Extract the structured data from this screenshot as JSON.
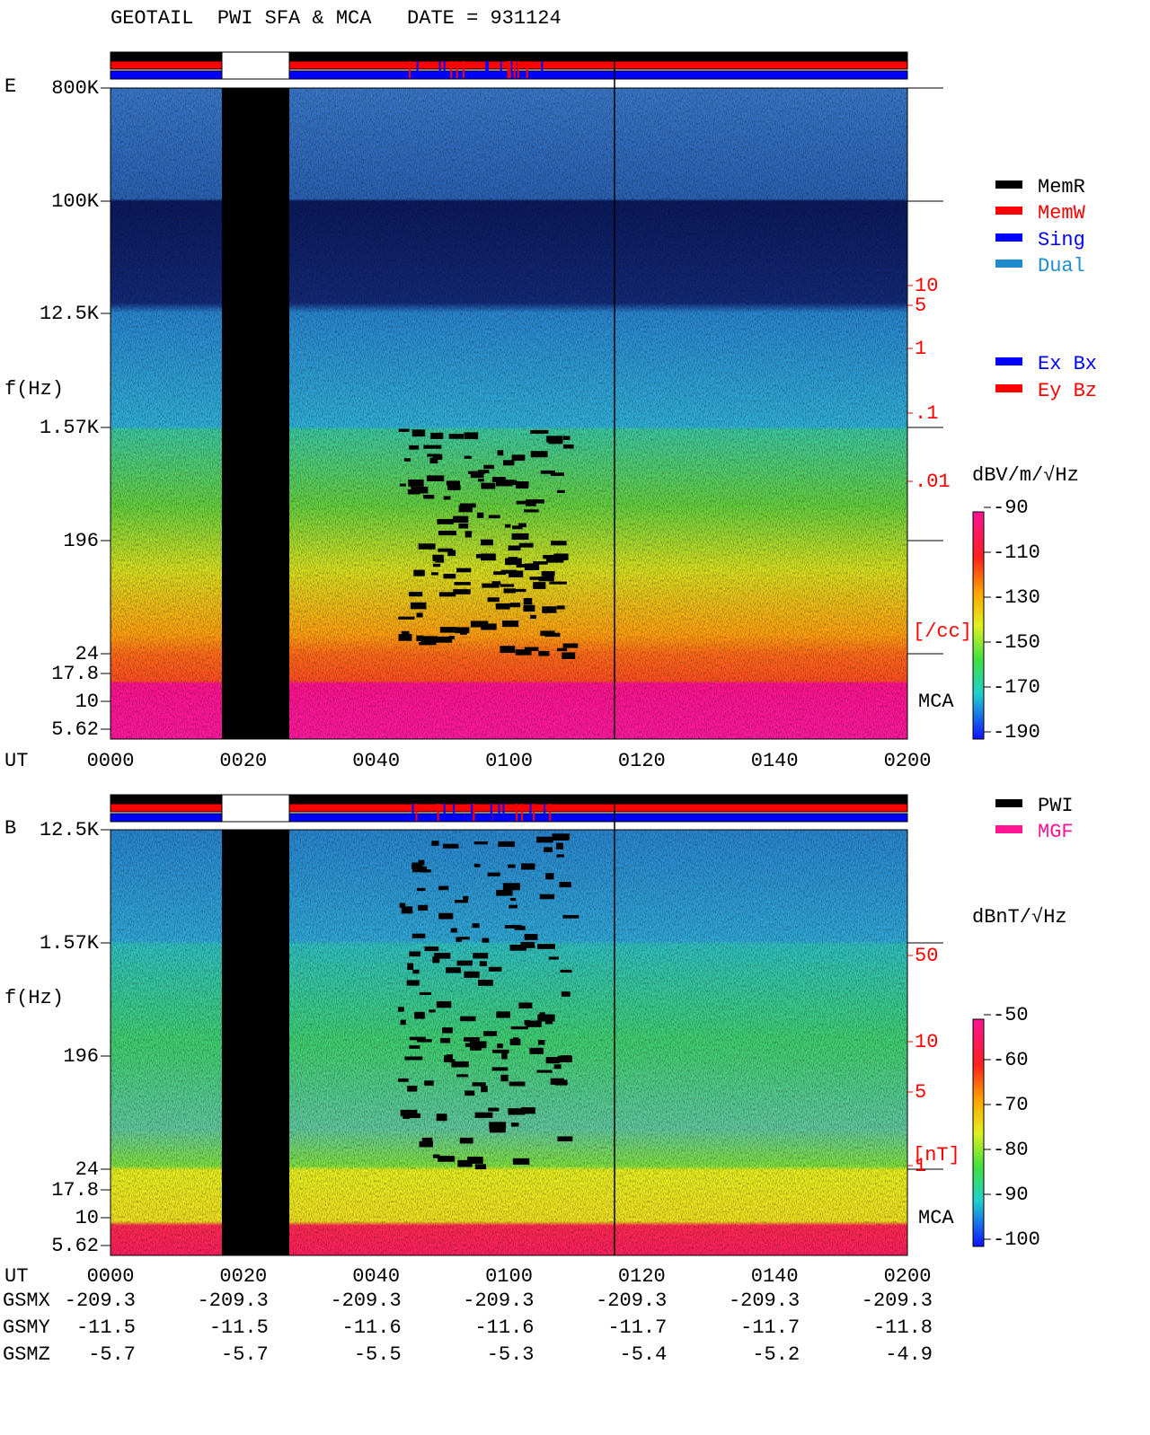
{
  "header": {
    "title": "GEOTAIL  PWI SFA & MCA   DATE = 931124"
  },
  "panels": [
    {
      "label": "E",
      "axis_title": "f(Hz)",
      "freq_ticks": [
        "800K",
        "100K",
        "12.5K",
        "1.57K",
        "196",
        "24",
        "17.8",
        "10",
        "5.62"
      ],
      "time_label": "UT",
      "time_ticks": [
        "0000",
        "0020",
        "0040",
        "0100",
        "0120",
        "0140",
        "0200"
      ],
      "side_scale": [
        "10",
        "5",
        "1",
        ".1",
        ".01"
      ],
      "side_unit": "[/cc]",
      "mca_label": "MCA",
      "legend": [
        {
          "name": "MemR",
          "color": "#000000"
        },
        {
          "name": "MemW",
          "color": "#ff0000"
        },
        {
          "name": "Sing",
          "color": "#0000ff"
        },
        {
          "name": "Dual",
          "color": "#1e8ccc"
        }
      ],
      "legend2": [
        {
          "name": "Ex Bx",
          "color": "#0000ff"
        },
        {
          "name": "Ey Bz",
          "color": "#ff0000"
        }
      ],
      "colorbar": {
        "unit": "dBV/m/√Hz",
        "ticks": [
          -90,
          -110,
          -130,
          -150,
          -170,
          -190
        ]
      }
    },
    {
      "label": "B",
      "axis_title": "f(Hz)",
      "freq_ticks": [
        "12.5K",
        "1.57K",
        "196",
        "24",
        "17.8",
        "10",
        "5.62"
      ],
      "time_label": "UT",
      "time_ticks": [
        "0000",
        "0020",
        "0040",
        "0100",
        "0120",
        "0140",
        "0200"
      ],
      "side_scale": [
        "50",
        "10",
        "5",
        "1"
      ],
      "side_unit": "[nT]",
      "mca_label": "MCA",
      "legend": [
        {
          "name": "PWI",
          "color": "#000000"
        },
        {
          "name": "MGF",
          "color": "#ff1493"
        }
      ],
      "colorbar": {
        "unit": "dBnT/√Hz",
        "ticks": [
          -50,
          -60,
          -70,
          -80,
          -90,
          -100
        ]
      }
    }
  ],
  "ephemeris": [
    {
      "name": "GSMX",
      "values": [
        -209.3,
        -209.3,
        -209.3,
        -209.3,
        -209.3,
        -209.3,
        -209.3
      ]
    },
    {
      "name": "GSMY",
      "values": [
        -11.5,
        -11.5,
        -11.6,
        -11.6,
        -11.7,
        -11.7,
        -11.8
      ]
    },
    {
      "name": "GSMZ",
      "values": [
        -5.7,
        -5.7,
        -5.5,
        -5.3,
        -5.4,
        -5.2,
        -4.9
      ]
    }
  ]
}
